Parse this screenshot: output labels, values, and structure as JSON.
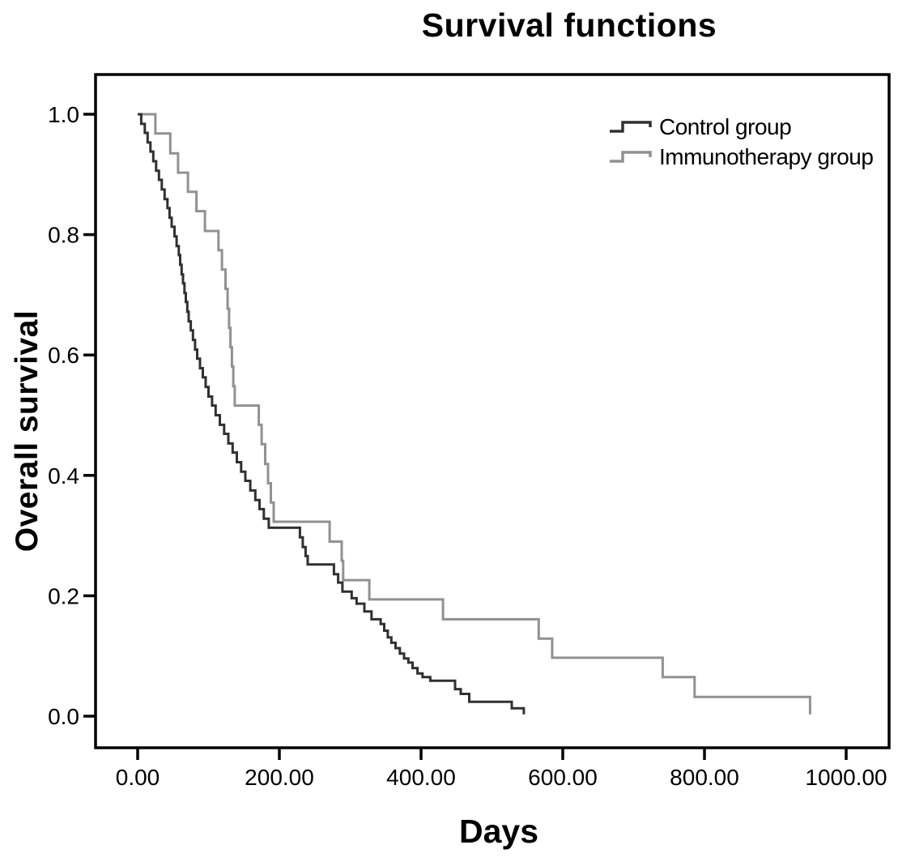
{
  "chart_data": {
    "type": "line",
    "subtype": "kaplan-meier-step",
    "title": "Survival functions",
    "xlabel": "Days",
    "ylabel": "Overall survival",
    "xlim": [
      0,
      1000
    ],
    "ylim": [
      0.0,
      1.0
    ],
    "grid": false,
    "legend_position": "top-right",
    "x_ticks": {
      "values": [
        0,
        200,
        400,
        600,
        800,
        1000
      ],
      "labels": [
        "0.00",
        "200.00",
        "400.00",
        "600.00",
        "800.00",
        "1000.00"
      ]
    },
    "y_ticks": {
      "values": [
        0.0,
        0.2,
        0.4,
        0.6,
        0.8,
        1.0
      ],
      "labels": [
        "0.0",
        "0.2",
        "0.4",
        "0.6",
        "0.8",
        "1.0"
      ]
    },
    "series": [
      {
        "name": "Control group",
        "color": "#303030",
        "points": [
          [
            0,
            1.0
          ],
          [
            5,
            0.984
          ],
          [
            10,
            0.969
          ],
          [
            14,
            0.953
          ],
          [
            18,
            0.938
          ],
          [
            22,
            0.922
          ],
          [
            26,
            0.906
          ],
          [
            30,
            0.891
          ],
          [
            34,
            0.875
          ],
          [
            38,
            0.859
          ],
          [
            42,
            0.844
          ],
          [
            45,
            0.828
          ],
          [
            48,
            0.813
          ],
          [
            52,
            0.797
          ],
          [
            55,
            0.781
          ],
          [
            58,
            0.766
          ],
          [
            60,
            0.75
          ],
          [
            62,
            0.734
          ],
          [
            64,
            0.719
          ],
          [
            66,
            0.703
          ],
          [
            68,
            0.688
          ],
          [
            70,
            0.672
          ],
          [
            72,
            0.656
          ],
          [
            75,
            0.641
          ],
          [
            78,
            0.625
          ],
          [
            81,
            0.609
          ],
          [
            84,
            0.594
          ],
          [
            88,
            0.578
          ],
          [
            92,
            0.563
          ],
          [
            96,
            0.547
          ],
          [
            100,
            0.531
          ],
          [
            105,
            0.516
          ],
          [
            110,
            0.5
          ],
          [
            116,
            0.484
          ],
          [
            122,
            0.469
          ],
          [
            128,
            0.453
          ],
          [
            134,
            0.438
          ],
          [
            140,
            0.422
          ],
          [
            146,
            0.406
          ],
          [
            152,
            0.391
          ],
          [
            159,
            0.375
          ],
          [
            166,
            0.359
          ],
          [
            172,
            0.344
          ],
          [
            178,
            0.328
          ],
          [
            185,
            0.313
          ],
          [
            229,
            0.297
          ],
          [
            233,
            0.281
          ],
          [
            237,
            0.266
          ],
          [
            240,
            0.252
          ],
          [
            277,
            0.236
          ],
          [
            283,
            0.222
          ],
          [
            289,
            0.207
          ],
          [
            302,
            0.196
          ],
          [
            309,
            0.187
          ],
          [
            320,
            0.174
          ],
          [
            330,
            0.161
          ],
          [
            343,
            0.153
          ],
          [
            348,
            0.142
          ],
          [
            353,
            0.131
          ],
          [
            358,
            0.122
          ],
          [
            364,
            0.113
          ],
          [
            370,
            0.104
          ],
          [
            376,
            0.096
          ],
          [
            382,
            0.089
          ],
          [
            388,
            0.08
          ],
          [
            395,
            0.071
          ],
          [
            402,
            0.065
          ],
          [
            413,
            0.059
          ],
          [
            448,
            0.045
          ],
          [
            456,
            0.037
          ],
          [
            468,
            0.024
          ],
          [
            528,
            0.013
          ],
          [
            545,
            0.003
          ]
        ]
      },
      {
        "name": "Immunotherapy group",
        "color": "#919191",
        "points": [
          [
            0,
            1.0
          ],
          [
            25,
            0.968
          ],
          [
            46,
            0.935
          ],
          [
            57,
            0.903
          ],
          [
            71,
            0.871
          ],
          [
            83,
            0.839
          ],
          [
            95,
            0.806
          ],
          [
            114,
            0.774
          ],
          [
            119,
            0.742
          ],
          [
            124,
            0.71
          ],
          [
            127,
            0.677
          ],
          [
            129,
            0.645
          ],
          [
            131,
            0.613
          ],
          [
            133,
            0.581
          ],
          [
            135,
            0.548
          ],
          [
            137,
            0.516
          ],
          [
            171,
            0.484
          ],
          [
            175,
            0.452
          ],
          [
            180,
            0.419
          ],
          [
            184,
            0.387
          ],
          [
            188,
            0.355
          ],
          [
            192,
            0.323
          ],
          [
            271,
            0.29
          ],
          [
            288,
            0.258
          ],
          [
            290,
            0.226
          ],
          [
            327,
            0.194
          ],
          [
            431,
            0.161
          ],
          [
            566,
            0.129
          ],
          [
            585,
            0.097
          ],
          [
            741,
            0.065
          ],
          [
            786,
            0.032
          ],
          [
            949,
            0.003
          ]
        ]
      }
    ]
  }
}
